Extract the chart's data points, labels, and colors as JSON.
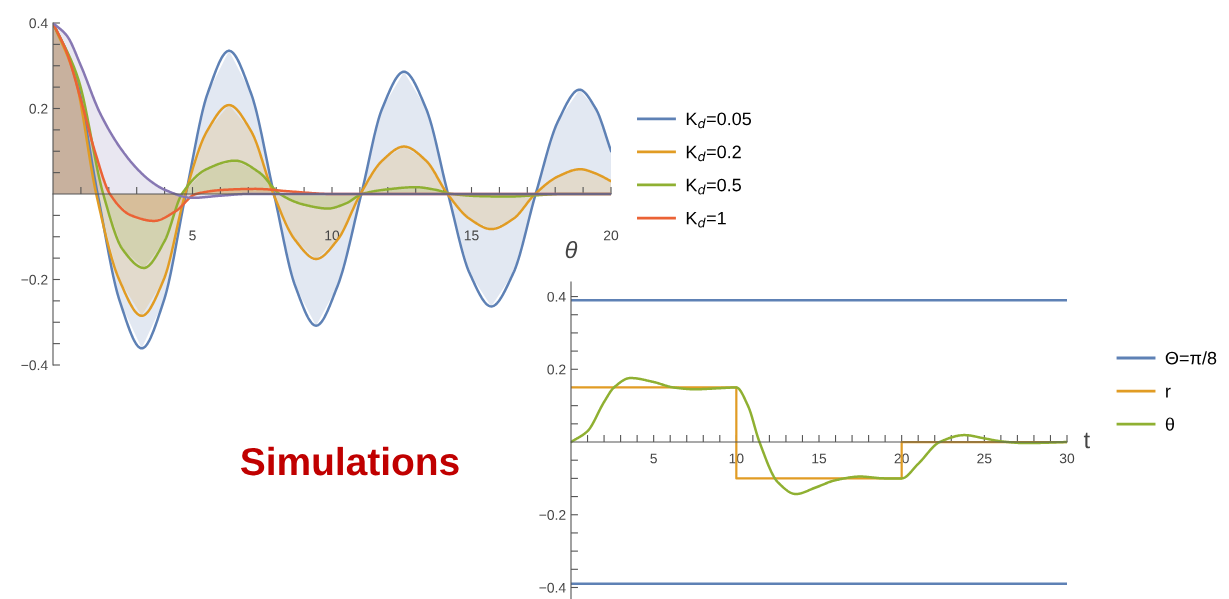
{
  "chart_data": [
    {
      "type": "area",
      "annotations": [
        "Simulations"
      ],
      "xlim": [
        0,
        20
      ],
      "ylim": [
        -0.4,
        0.4
      ],
      "xticks": [
        {
          "value": 1,
          "label": null
        },
        {
          "value": 2,
          "label": null
        },
        {
          "value": 3,
          "label": null
        },
        {
          "value": 4,
          "label": null
        },
        5,
        {
          "value": 6,
          "label": null
        },
        {
          "value": 7,
          "label": null
        },
        {
          "value": 8,
          "label": null
        },
        {
          "value": 9,
          "label": null
        },
        10,
        {
          "value": 11,
          "label": null
        },
        {
          "value": 12,
          "label": null
        },
        {
          "value": 13,
          "label": null
        },
        {
          "value": 14,
          "label": null
        },
        15,
        {
          "value": 16,
          "label": null
        },
        {
          "value": 17,
          "label": null
        },
        {
          "value": 18,
          "label": null
        },
        {
          "value": 19,
          "label": null
        },
        20
      ],
      "yticks": [
        {
          "value": -0.4,
          "label": "−0.4"
        },
        {
          "value": -0.35,
          "label": null
        },
        {
          "value": -0.3,
          "label": null
        },
        {
          "value": -0.25,
          "label": null
        },
        {
          "value": -0.2,
          "label": "−0.2"
        },
        {
          "value": -0.15,
          "label": null
        },
        {
          "value": -0.1,
          "label": null
        },
        {
          "value": -0.05,
          "label": null
        },
        {
          "value": 0.05,
          "label": null
        },
        {
          "value": 0.1,
          "label": null
        },
        {
          "value": 0.15,
          "label": null
        },
        {
          "value": 0.2,
          "label": "0.2"
        },
        {
          "value": 0.25,
          "label": null
        },
        {
          "value": 0.3,
          "label": null
        },
        {
          "value": 0.35,
          "label": null
        },
        {
          "value": 0.4,
          "label": "0.4"
        }
      ],
      "grid": false,
      "legend": "right",
      "marker": "none",
      "line_style": "solid",
      "series": [
        {
          "name": "K$_{d}$=0.05",
          "color": "#5e81b5",
          "x": [
            0,
            0.8,
            1.6,
            2.39,
            3.18,
            3.97,
            4.76,
            5.54,
            6.31,
            7.1,
            7.92,
            8.68,
            9.43,
            10.2,
            11.05,
            11.8,
            12.58,
            13.37,
            14.16,
            14.93,
            15.71,
            16.5,
            17.3,
            18.1,
            18.87,
            19.45,
            20
          ],
          "values": [
            0.4,
            0.28,
            0,
            -0.25,
            -0.361,
            -0.25,
            0,
            0.235,
            0.335,
            0.235,
            0,
            -0.215,
            -0.308,
            -0.215,
            0,
            0.2,
            0.286,
            0.2,
            0,
            -0.185,
            -0.263,
            -0.185,
            0,
            0.17,
            0.244,
            0.2,
            0.101
          ]
        },
        {
          "name": "K$_{d}$=0.2",
          "color": "#e19c24",
          "x": [
            0,
            0.8,
            1.55,
            2.37,
            3.18,
            3.97,
            4.74,
            5.52,
            6.31,
            7.1,
            7.9,
            8.67,
            9.43,
            10.2,
            11.02,
            11.8,
            12.58,
            13.37,
            14.14,
            14.93,
            15.71,
            16.5,
            17.28,
            18.1,
            18.9,
            19.45,
            20
          ],
          "values": [
            0.4,
            0.27,
            0,
            -0.2,
            -0.285,
            -0.2,
            0,
            0.147,
            0.208,
            0.147,
            0,
            -0.107,
            -0.152,
            -0.107,
            0,
            0.078,
            0.111,
            0.078,
            0,
            -0.058,
            -0.082,
            -0.058,
            0,
            0.041,
            0.058,
            0.048,
            0.03
          ]
        },
        {
          "name": "K$_{d}$=0.5",
          "color": "#8fb032",
          "x": [
            0,
            0.9,
            1.8,
            2.5,
            3.26,
            4.0,
            4.62,
            5.5,
            6.53,
            7.4,
            8.13,
            9.0,
            9.86,
            10.5,
            11.08,
            12.0,
            13.0,
            13.7,
            14.3,
            15.3,
            16.3,
            17.3,
            18.3,
            20
          ],
          "values": [
            0.4,
            0.27,
            0,
            -0.13,
            -0.173,
            -0.11,
            0,
            0.058,
            0.078,
            0.05,
            0,
            -0.025,
            -0.034,
            -0.022,
            0,
            0.011,
            0.016,
            0.01,
            0,
            -0.005,
            -0.006,
            -0.003,
            0,
            0
          ]
        },
        {
          "name": "K$_{d}$=1",
          "color": "#eb6235",
          "x": [
            0,
            0.5,
            1.0,
            1.5,
            2.04,
            2.8,
            3.62,
            4.4,
            5.12,
            6.2,
            7.27,
            8.5,
            10,
            20
          ],
          "values": [
            0.4,
            0.33,
            0.22,
            0.1,
            0,
            -0.05,
            -0.063,
            -0.04,
            0,
            0.01,
            0.012,
            0.006,
            0,
            0
          ]
        },
        {
          "color": "#8778b3",
          "x": [
            0,
            0.5,
            1,
            1.68,
            2.4,
            3,
            3.5,
            4,
            5,
            6,
            7,
            20
          ],
          "values": [
            0.4,
            0.37,
            0.3,
            0.19,
            0.109,
            0.06,
            0.03,
            0.01,
            -0.009,
            -0.004,
            0,
            0
          ]
        }
      ]
    },
    {
      "type": "line",
      "xlabel": "t",
      "ylabel": "θ",
      "xlim": [
        0,
        30
      ],
      "ylim": [
        -0.43,
        0.44
      ],
      "xticks": [
        {
          "value": 1,
          "label": null
        },
        {
          "value": 2,
          "label": null
        },
        {
          "value": 3,
          "label": null
        },
        {
          "value": 4,
          "label": null
        },
        5,
        {
          "value": 6,
          "label": null
        },
        {
          "value": 7,
          "label": null
        },
        {
          "value": 8,
          "label": null
        },
        {
          "value": 9,
          "label": null
        },
        10,
        {
          "value": 11,
          "label": null
        },
        {
          "value": 12,
          "label": null
        },
        {
          "value": 13,
          "label": null
        },
        {
          "value": 14,
          "label": null
        },
        15,
        {
          "value": 16,
          "label": null
        },
        {
          "value": 17,
          "label": null
        },
        {
          "value": 18,
          "label": null
        },
        {
          "value": 19,
          "label": null
        },
        20,
        {
          "value": 21,
          "label": null
        },
        {
          "value": 22,
          "label": null
        },
        {
          "value": 23,
          "label": null
        },
        {
          "value": 24,
          "label": null
        },
        25,
        {
          "value": 26,
          "label": null
        },
        {
          "value": 27,
          "label": null
        },
        {
          "value": 28,
          "label": null
        },
        {
          "value": 29,
          "label": null
        },
        30
      ],
      "yticks": [
        {
          "value": -0.4,
          "label": "−0.4"
        },
        {
          "value": -0.35,
          "label": null
        },
        {
          "value": -0.3,
          "label": null
        },
        {
          "value": -0.25,
          "label": null
        },
        {
          "value": -0.2,
          "label": "−0.2"
        },
        {
          "value": -0.15,
          "label": null
        },
        {
          "value": -0.1,
          "label": null
        },
        {
          "value": -0.05,
          "label": null
        },
        {
          "value": 0.05,
          "label": null
        },
        {
          "value": 0.1,
          "label": null
        },
        {
          "value": 0.15,
          "label": null
        },
        {
          "value": 0.2,
          "label": "0.2"
        },
        {
          "value": 0.25,
          "label": null
        },
        {
          "value": 0.3,
          "label": null
        },
        {
          "value": 0.35,
          "label": null
        },
        {
          "value": 0.4,
          "label": "0.4"
        }
      ],
      "grid": false,
      "legend": "right",
      "marker": "none",
      "line_style": "solid",
      "series": [
        {
          "name": "Θ=π/8",
          "color": "#5e81b5",
          "x": [
            0,
            30
          ],
          "values": [
            0.39,
            0.39
          ]
        },
        {
          "color": "#5e81b5",
          "x": [
            0,
            30
          ],
          "values": [
            -0.39,
            -0.39
          ]
        },
        {
          "name": "r",
          "type": "step",
          "color": "#e19c24",
          "x": [
            0,
            10,
            20,
            30
          ],
          "values": [
            0.15,
            -0.1,
            0,
            0
          ]
        },
        {
          "name": "θ",
          "color": "#8fb032",
          "x": [
            0,
            1,
            2,
            2.6,
            3.6,
            5,
            6.2,
            7.5,
            9,
            10,
            10.7,
            11.4,
            12.5,
            13.6,
            14.8,
            16,
            17.5,
            19,
            20,
            21,
            22.3,
            23.8,
            25,
            26,
            27.5,
            30
          ],
          "values": [
            0,
            0.03,
            0.11,
            0.15,
            0.176,
            0.165,
            0.15,
            0.145,
            0.148,
            0.15,
            0.1,
            0,
            -0.11,
            -0.143,
            -0.125,
            -0.105,
            -0.095,
            -0.1,
            -0.1,
            -0.06,
            0,
            0.019,
            0.01,
            0.002,
            -0.003,
            0
          ]
        }
      ]
    }
  ]
}
